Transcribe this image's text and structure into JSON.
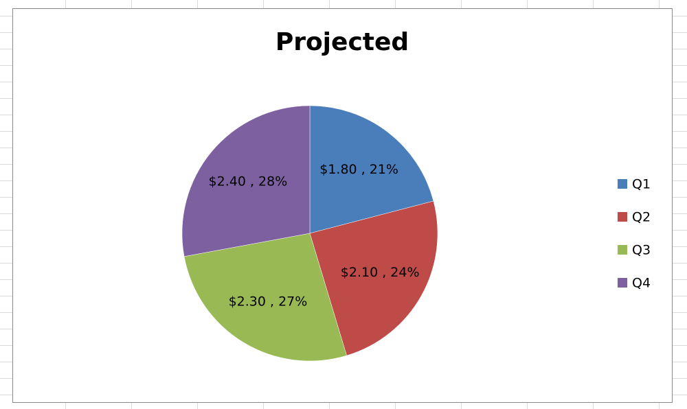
{
  "chart_data": {
    "type": "pie",
    "title": "Projected",
    "categories": [
      "Q1",
      "Q2",
      "Q3",
      "Q4"
    ],
    "values": [
      1.8,
      2.1,
      2.3,
      2.4
    ],
    "value_labels": [
      "$1.80 , 21%",
      "$2.10 , 24%",
      "$2.30 , 27%",
      "$2.40 , 28%"
    ],
    "colors": [
      "#4a7ebb",
      "#be4b48",
      "#98b954",
      "#7d60a0"
    ],
    "legend": "right"
  }
}
